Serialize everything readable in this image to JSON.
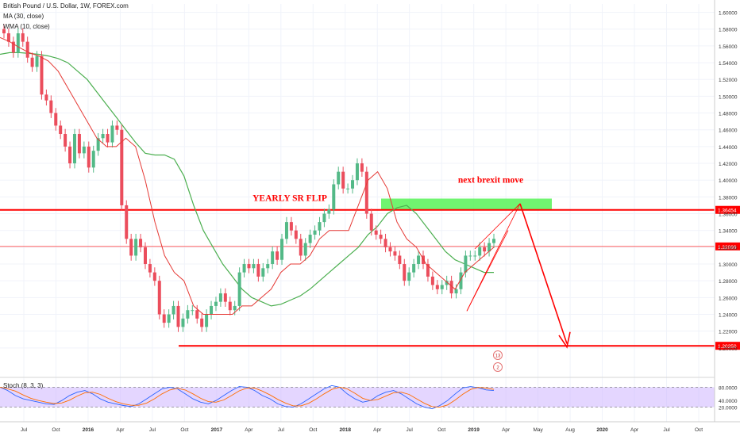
{
  "header": {
    "title": "British Pound / U.S. Dollar, 1W, FOREX.com",
    "ma_label": "MA (30, close)",
    "wma_label": "WMA (10, close)",
    "stoch_label": "Stoch (8, 3, 3)"
  },
  "annotations": {
    "sr_flip": "YEARLY SR FLIP",
    "next_move": "next brexit move",
    "event1": "13",
    "event2": "2"
  },
  "colors": {
    "up": "#53b987",
    "down": "#eb4d5c",
    "ma": "#4caf50",
    "wma": "#e53935",
    "level_line": "#ff0000",
    "zone": "#57f257",
    "stoch_band": "#cdb5ff",
    "stoch_k": "#2962ff",
    "stoch_d": "#ff6d00"
  },
  "chart_data": {
    "type": "line",
    "ylim": [
      1.18,
      1.61
    ],
    "price_axis_ticks": [
      "1.60000",
      "1.58000",
      "1.56000",
      "1.54000",
      "1.52000",
      "1.50000",
      "1.48000",
      "1.46000",
      "1.44000",
      "1.42000",
      "1.40000",
      "1.38000",
      "1.36000",
      "1.34000",
      "1.32000",
      "1.30000",
      "1.28000",
      "1.26000",
      "1.24000",
      "1.22000",
      "1.20000"
    ],
    "time_axis_ticks": [
      "Jul",
      "Oct",
      "2016",
      "Apr",
      "Jul",
      "Oct",
      "2017",
      "Apr",
      "Jul",
      "Oct",
      "2018",
      "Apr",
      "Jul",
      "Oct",
      "2019",
      "Apr",
      "May",
      "Aug",
      "2020",
      "Apr",
      "Jul",
      "Oct"
    ],
    "levels": [
      {
        "label": "1.36454",
        "value": 1.36454
      },
      {
        "label": "1.32099",
        "value": 1.32099
      },
      {
        "label": "1.20250",
        "value": 1.2025
      }
    ],
    "zone": {
      "from": 1.3645,
      "to": 1.378
    },
    "series": [
      {
        "name": "British Pound / U.S. Dollar",
        "values": [
          1.575,
          1.565,
          1.552,
          1.575,
          1.565,
          1.546,
          1.535,
          1.548,
          1.502,
          1.495,
          1.48,
          1.465,
          1.455,
          1.44,
          1.42,
          1.455,
          1.432,
          1.44,
          1.415,
          1.435,
          1.45,
          1.455,
          1.445,
          1.465,
          1.46,
          1.37,
          1.33,
          1.31,
          1.33,
          1.32,
          1.3,
          1.29,
          1.28,
          1.24,
          1.23,
          1.24,
          1.25,
          1.225,
          1.235,
          1.245,
          1.245,
          1.235,
          1.225,
          1.24,
          1.25,
          1.255,
          1.265,
          1.255,
          1.245,
          1.25,
          1.29,
          1.3,
          1.295,
          1.3,
          1.285,
          1.295,
          1.3,
          1.315,
          1.305,
          1.33,
          1.35,
          1.34,
          1.33,
          1.31,
          1.325,
          1.335,
          1.34,
          1.35,
          1.36,
          1.365,
          1.395,
          1.41,
          1.39,
          1.39,
          1.4,
          1.42,
          1.41,
          1.36,
          1.34,
          1.335,
          1.33,
          1.32,
          1.315,
          1.31,
          1.3,
          1.28,
          1.29,
          1.3,
          1.31,
          1.3,
          1.285,
          1.275,
          1.27,
          1.275,
          1.28,
          1.265,
          1.27,
          1.29,
          1.31,
          1.31,
          1.31,
          1.32,
          1.315,
          1.325,
          1.33
        ]
      },
      {
        "name": "MA (30, close)",
        "values": [
          1.55,
          1.552,
          1.552,
          1.551,
          1.55,
          1.548,
          1.545,
          1.54,
          1.53,
          1.52,
          1.505,
          1.49,
          1.475,
          1.46,
          1.445,
          1.432,
          1.43,
          1.43,
          1.425,
          1.405,
          1.37,
          1.34,
          1.32,
          1.3,
          1.285,
          1.27,
          1.26,
          1.255,
          1.25,
          1.252,
          1.257,
          1.262,
          1.27,
          1.28,
          1.29,
          1.3,
          1.31,
          1.32,
          1.335,
          1.345,
          1.36,
          1.367,
          1.37,
          1.36,
          1.345,
          1.33,
          1.315,
          1.305,
          1.3,
          1.295,
          1.29,
          1.29
        ]
      },
      {
        "name": "WMA (10, close)",
        "values": [
          1.57,
          1.565,
          1.558,
          1.552,
          1.548,
          1.542,
          1.53,
          1.51,
          1.49,
          1.47,
          1.45,
          1.44,
          1.44,
          1.45,
          1.44,
          1.4,
          1.35,
          1.31,
          1.29,
          1.28,
          1.25,
          1.24,
          1.24,
          1.24,
          1.24,
          1.25,
          1.25,
          1.26,
          1.27,
          1.29,
          1.3,
          1.3,
          1.31,
          1.33,
          1.34,
          1.34,
          1.34,
          1.37,
          1.4,
          1.41,
          1.39,
          1.35,
          1.33,
          1.32,
          1.3,
          1.29,
          1.28,
          1.27,
          1.29,
          1.3,
          1.31,
          1.32
        ]
      },
      {
        "name": "Stoch (8, 3, 3)",
        "values": [
          80,
          70,
          55,
          45,
          40,
          35,
          30,
          28,
          40,
          55,
          65,
          70,
          60,
          45,
          35,
          30,
          25,
          22,
          30,
          45,
          60,
          75,
          80,
          75,
          60,
          45,
          35,
          30,
          40,
          55,
          70,
          82,
          80,
          70,
          55,
          45,
          30,
          22,
          20,
          30,
          45,
          60,
          75,
          85,
          80,
          60,
          45,
          35,
          40,
          55,
          65,
          70,
          60,
          45,
          30,
          20,
          15,
          25,
          40,
          60,
          78,
          82,
          78,
          72,
          70
        ]
      }
    ],
    "stoch_ticks": [
      "80.0000",
      "40.0000",
      "20.0000"
    ],
    "stoch_ylim": [
      0,
      100
    ]
  }
}
